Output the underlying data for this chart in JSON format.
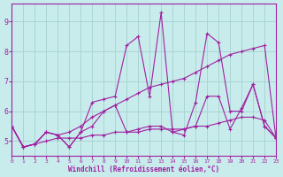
{
  "xlabel": "Windchill (Refroidissement éolien,°C)",
  "background_color": "#c8ecec",
  "grid_color": "#aad4d4",
  "line_color": "#a020a0",
  "xlim": [
    0,
    23
  ],
  "ylim": [
    4.5,
    9.6
  ],
  "xticks": [
    0,
    1,
    2,
    3,
    4,
    5,
    6,
    7,
    8,
    9,
    10,
    11,
    12,
    13,
    14,
    15,
    16,
    17,
    18,
    19,
    20,
    21,
    22,
    23
  ],
  "yticks": [
    5,
    6,
    7,
    8,
    9
  ],
  "lines": [
    {
      "x": [
        0,
        1,
        2,
        3,
        4,
        5,
        6,
        7,
        8,
        9,
        10,
        11,
        12,
        13,
        14,
        15,
        16,
        17,
        18,
        19,
        20,
        21,
        22,
        23
      ],
      "y": [
        5.5,
        4.8,
        4.9,
        5.0,
        5.1,
        5.1,
        5.1,
        5.2,
        5.2,
        5.3,
        5.3,
        5.3,
        5.4,
        5.4,
        5.4,
        5.4,
        5.5,
        5.5,
        5.6,
        5.7,
        5.8,
        5.8,
        5.7,
        5.1
      ]
    },
    {
      "x": [
        0,
        1,
        2,
        3,
        4,
        5,
        6,
        7,
        8,
        9,
        10,
        11,
        12,
        13,
        14,
        15,
        16,
        17,
        18,
        19,
        20,
        21,
        22,
        23
      ],
      "y": [
        5.5,
        4.8,
        4.9,
        5.3,
        5.2,
        5.3,
        5.5,
        5.8,
        6.0,
        6.2,
        6.4,
        6.6,
        6.8,
        6.9,
        7.0,
        7.1,
        7.3,
        7.5,
        7.7,
        7.9,
        8.0,
        8.1,
        8.2,
        5.1
      ]
    },
    {
      "x": [
        0,
        1,
        2,
        3,
        4,
        5,
        6,
        7,
        8,
        9,
        10,
        11,
        12,
        13,
        14,
        15,
        16,
        17,
        18,
        19,
        20,
        21,
        22,
        23
      ],
      "y": [
        5.5,
        4.8,
        4.9,
        5.3,
        5.2,
        4.8,
        5.3,
        6.3,
        6.4,
        6.5,
        8.2,
        8.5,
        6.5,
        9.3,
        5.3,
        5.2,
        6.3,
        8.6,
        8.3,
        6.0,
        6.0,
        6.9,
        5.5,
        5.1
      ]
    },
    {
      "x": [
        0,
        1,
        2,
        3,
        4,
        5,
        6,
        7,
        8,
        9,
        10,
        11,
        12,
        13,
        14,
        15,
        16,
        17,
        18,
        19,
        20,
        21,
        22,
        23
      ],
      "y": [
        5.5,
        4.8,
        4.9,
        5.3,
        5.2,
        4.8,
        5.3,
        5.5,
        6.0,
        6.2,
        5.3,
        5.4,
        5.5,
        5.5,
        5.3,
        5.4,
        5.5,
        6.5,
        6.5,
        5.4,
        6.1,
        6.9,
        5.5,
        5.1
      ]
    }
  ]
}
